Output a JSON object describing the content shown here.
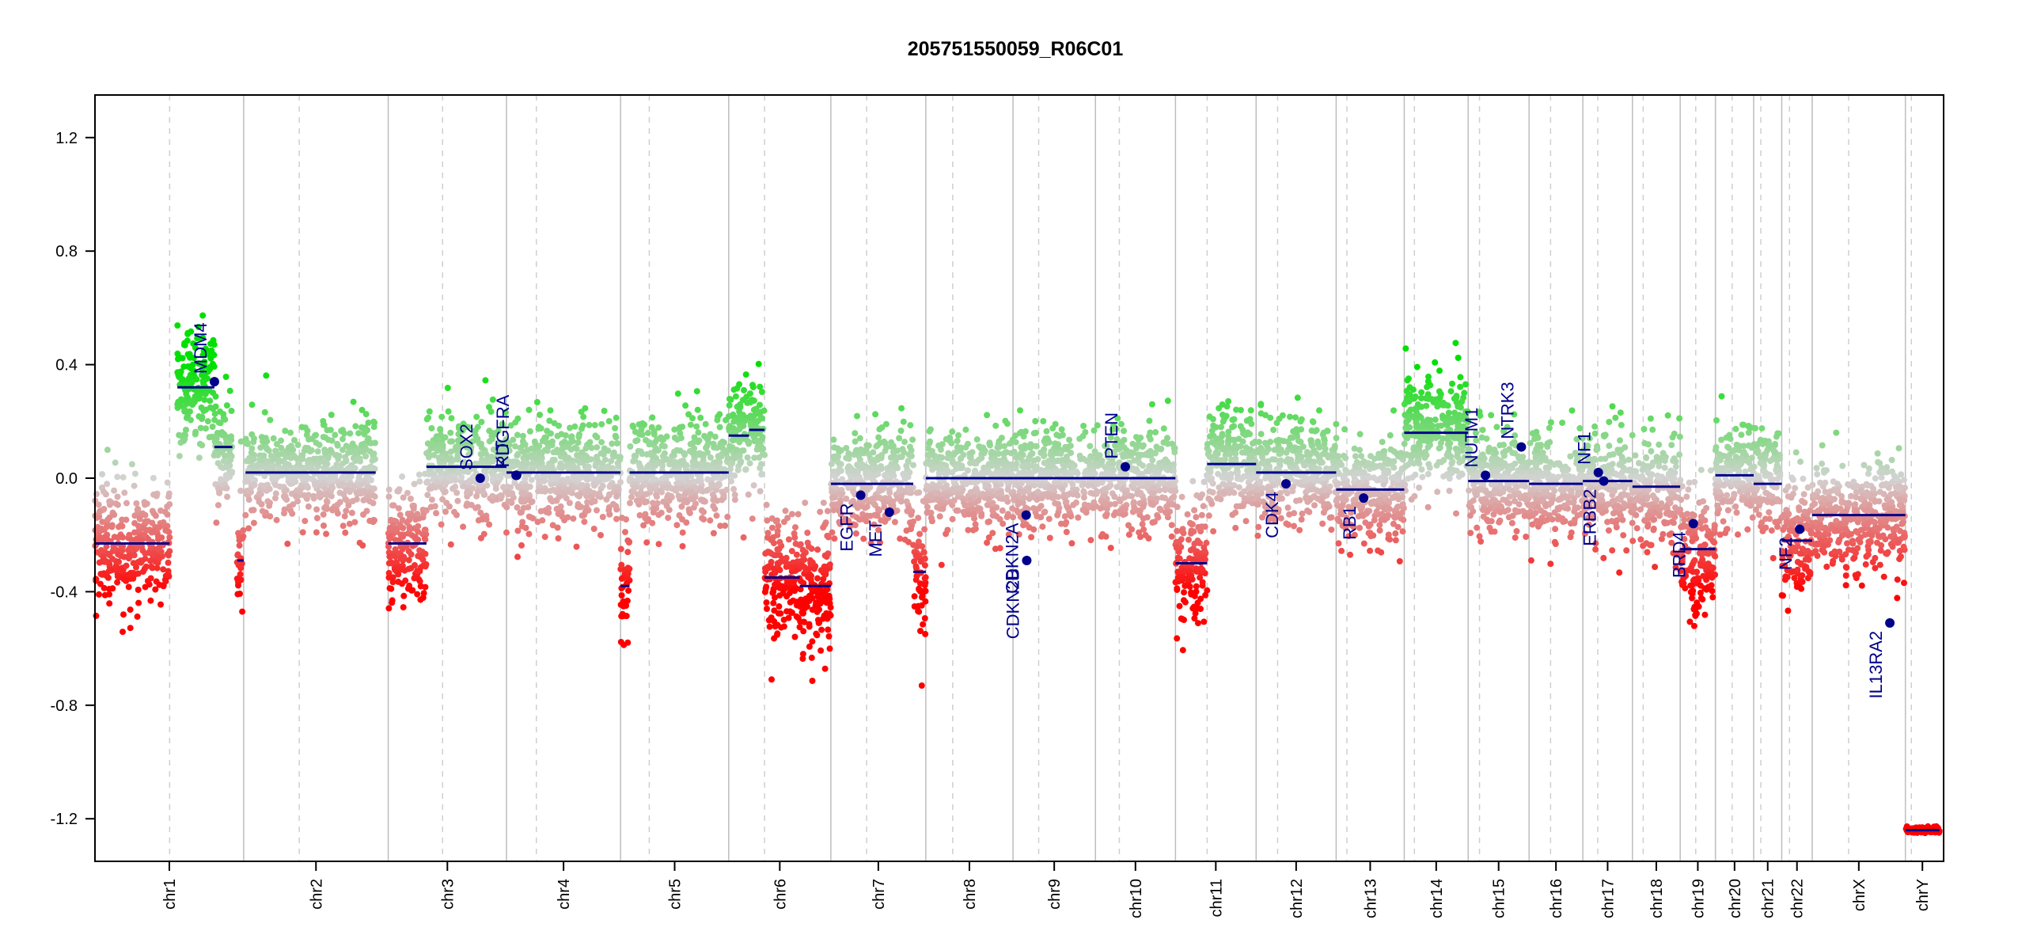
{
  "chart_data": {
    "type": "scatter",
    "title": "205751550059_R06C01",
    "xlabel": "",
    "ylabel": "",
    "ylim": [
      -1.35,
      1.35
    ],
    "y_ticks": [
      -1.2,
      -0.8,
      -0.4,
      0.0,
      0.4,
      0.8,
      1.2
    ],
    "y_tick_labels": [
      "-1.2",
      "-0.8",
      "-0.4",
      "0.0",
      "0.4",
      "0.8",
      "1.2"
    ],
    "grid": "vertical chromosome boundaries (solid) and centromeres (dashed)",
    "legend": "none",
    "colors": {
      "gain": "#00e000",
      "loss": "#ff0000",
      "neutral": "#d3d3d3",
      "segment": "#00008b",
      "gene": "#00008b"
    },
    "chromosomes": [
      {
        "name": "chr1",
        "start": 0,
        "end": 2.49,
        "centromere": 1.25
      },
      {
        "name": "chr2",
        "start": 2.49,
        "end": 4.91,
        "centromere": 3.42
      },
      {
        "name": "chr3",
        "start": 4.91,
        "end": 6.89,
        "centromere": 5.82
      },
      {
        "name": "chr4",
        "start": 6.89,
        "end": 8.8,
        "centromere": 7.39
      },
      {
        "name": "chr5",
        "start": 8.8,
        "end": 10.61,
        "centromere": 9.28
      },
      {
        "name": "chr6",
        "start": 10.61,
        "end": 12.32,
        "centromere": 11.21
      },
      {
        "name": "chr7",
        "start": 12.32,
        "end": 13.91,
        "centromere": 12.92
      },
      {
        "name": "chr8",
        "start": 13.91,
        "end": 15.37,
        "centromere": 14.36
      },
      {
        "name": "chr9",
        "start": 15.37,
        "end": 16.75,
        "centromere": 15.8
      },
      {
        "name": "chr10",
        "start": 16.75,
        "end": 18.09,
        "centromere": 17.15
      },
      {
        "name": "chr11",
        "start": 18.09,
        "end": 19.44,
        "centromere": 18.62
      },
      {
        "name": "chr12",
        "start": 19.44,
        "end": 20.78,
        "centromere": 19.8
      },
      {
        "name": "chr13",
        "start": 20.78,
        "end": 21.92,
        "centromere": 20.96
      },
      {
        "name": "chr14",
        "start": 21.92,
        "end": 22.99,
        "centromere": 22.09
      },
      {
        "name": "chr15",
        "start": 22.99,
        "end": 24.01,
        "centromere": 23.18
      },
      {
        "name": "chr16",
        "start": 24.01,
        "end": 24.91,
        "centromere": 24.37
      },
      {
        "name": "chr17",
        "start": 24.91,
        "end": 25.74,
        "centromere": 25.16
      },
      {
        "name": "chr18",
        "start": 25.74,
        "end": 26.54,
        "centromere": 25.92
      },
      {
        "name": "chr19",
        "start": 26.54,
        "end": 27.13,
        "centromere": 26.8
      },
      {
        "name": "chr20",
        "start": 27.13,
        "end": 27.77,
        "centromere": 27.41
      },
      {
        "name": "chr21",
        "start": 27.77,
        "end": 28.24,
        "centromere": 27.89
      },
      {
        "name": "chr22",
        "start": 28.24,
        "end": 28.75,
        "centromere": 28.37
      },
      {
        "name": "chrX",
        "start": 28.75,
        "end": 30.31,
        "centromere": 29.36
      },
      {
        "name": "chrY",
        "start": 30.31,
        "end": 30.88,
        "centromere": 30.41
      }
    ],
    "segments": [
      {
        "x0": 0.0,
        "x1": 1.25,
        "y": -0.23
      },
      {
        "x0": 1.38,
        "x1": 2.0,
        "y": 0.32
      },
      {
        "x0": 2.0,
        "x1": 2.3,
        "y": 0.11
      },
      {
        "x0": 2.38,
        "x1": 2.49,
        "y": -0.29
      },
      {
        "x0": 2.52,
        "x1": 4.7,
        "y": 0.02
      },
      {
        "x0": 4.91,
        "x1": 5.55,
        "y": -0.23
      },
      {
        "x0": 5.55,
        "x1": 6.89,
        "y": 0.04
      },
      {
        "x0": 6.89,
        "x1": 8.8,
        "y": 0.02
      },
      {
        "x0": 8.8,
        "x1": 8.95,
        "y": -0.38
      },
      {
        "x0": 8.95,
        "x1": 10.61,
        "y": 0.02
      },
      {
        "x0": 10.61,
        "x1": 10.95,
        "y": 0.15
      },
      {
        "x0": 10.95,
        "x1": 11.21,
        "y": 0.17
      },
      {
        "x0": 11.21,
        "x1": 11.8,
        "y": -0.35
      },
      {
        "x0": 11.8,
        "x1": 12.32,
        "y": -0.38
      },
      {
        "x0": 12.32,
        "x1": 13.7,
        "y": -0.02
      },
      {
        "x0": 13.7,
        "x1": 13.91,
        "y": -0.33
      },
      {
        "x0": 13.91,
        "x1": 15.37,
        "y": 0.0
      },
      {
        "x0": 15.37,
        "x1": 16.75,
        "y": 0.0
      },
      {
        "x0": 16.75,
        "x1": 18.09,
        "y": 0.0
      },
      {
        "x0": 18.09,
        "x1": 18.62,
        "y": -0.3
      },
      {
        "x0": 18.62,
        "x1": 19.44,
        "y": 0.05
      },
      {
        "x0": 19.44,
        "x1": 20.78,
        "y": 0.02
      },
      {
        "x0": 20.78,
        "x1": 21.92,
        "y": -0.04
      },
      {
        "x0": 21.92,
        "x1": 22.99,
        "y": 0.16
      },
      {
        "x0": 22.99,
        "x1": 24.01,
        "y": -0.01
      },
      {
        "x0": 24.01,
        "x1": 24.91,
        "y": -0.02
      },
      {
        "x0": 24.91,
        "x1": 25.74,
        "y": -0.01
      },
      {
        "x0": 25.74,
        "x1": 26.54,
        "y": -0.03
      },
      {
        "x0": 26.54,
        "x1": 27.13,
        "y": -0.25
      },
      {
        "x0": 27.13,
        "x1": 27.77,
        "y": 0.01
      },
      {
        "x0": 27.77,
        "x1": 28.24,
        "y": -0.02
      },
      {
        "x0": 28.24,
        "x1": 28.75,
        "y": -0.22
      },
      {
        "x0": 28.75,
        "x1": 30.31,
        "y": -0.13
      },
      {
        "x0": 30.31,
        "x1": 30.88,
        "y": -1.24
      }
    ],
    "genes": [
      {
        "name": "MDM4",
        "x": 2.0,
        "y": 0.34
      },
      {
        "name": "SOX2",
        "x": 6.45,
        "y": 0.0
      },
      {
        "name": "KIT",
        "x": 7.05,
        "y": 0.01
      },
      {
        "name": "PDGFRA",
        "x": 7.06,
        "y": 0.01
      },
      {
        "name": "EGFR",
        "x": 12.82,
        "y": -0.06
      },
      {
        "name": "MET",
        "x": 13.3,
        "y": -0.12
      },
      {
        "name": "CDKN2A",
        "x": 15.59,
        "y": -0.13
      },
      {
        "name": "CDKN2B",
        "x": 15.6,
        "y": -0.29
      },
      {
        "name": "PTEN",
        "x": 17.25,
        "y": 0.04
      },
      {
        "name": "CDK4",
        "x": 19.94,
        "y": -0.02
      },
      {
        "name": "RB1",
        "x": 21.24,
        "y": -0.07
      },
      {
        "name": "NUTM1",
        "x": 23.28,
        "y": 0.01
      },
      {
        "name": "NTRK3",
        "x": 23.88,
        "y": 0.11
      },
      {
        "name": "NF1",
        "x": 25.17,
        "y": 0.02
      },
      {
        "name": "ERBB2",
        "x": 25.26,
        "y": -0.01
      },
      {
        "name": "BRD4",
        "x": 26.76,
        "y": -0.16
      },
      {
        "name": "NF2",
        "x": 28.54,
        "y": -0.18
      },
      {
        "name": "IL13RA2",
        "x": 30.05,
        "y": -0.51
      }
    ]
  }
}
